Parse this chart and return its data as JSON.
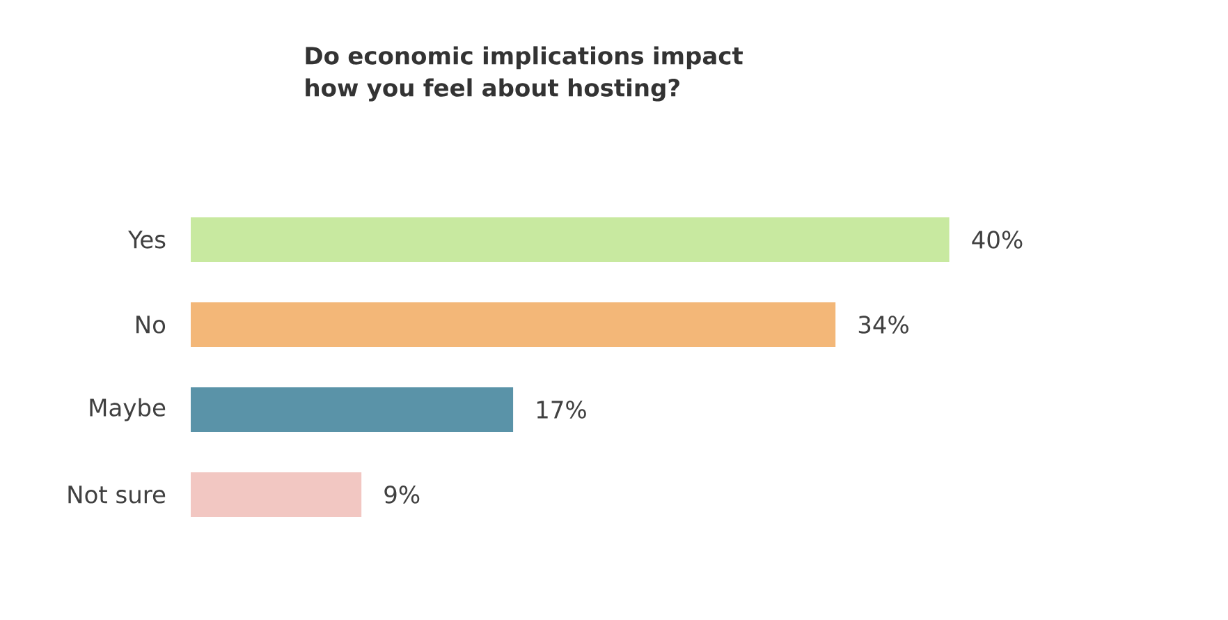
{
  "chart_data": {
    "type": "bar",
    "orientation": "horizontal",
    "title": "Do economic implications impact how you feel about hosting?",
    "categories": [
      "Yes",
      "No",
      "Maybe",
      "Not sure"
    ],
    "values": [
      40,
      34,
      17,
      9
    ],
    "colors": [
      "#c8e9a0",
      "#f3b778",
      "#5a93a8",
      "#f2c7c2"
    ],
    "value_labels": [
      "40%",
      "34%",
      "17%",
      "9%"
    ]
  }
}
